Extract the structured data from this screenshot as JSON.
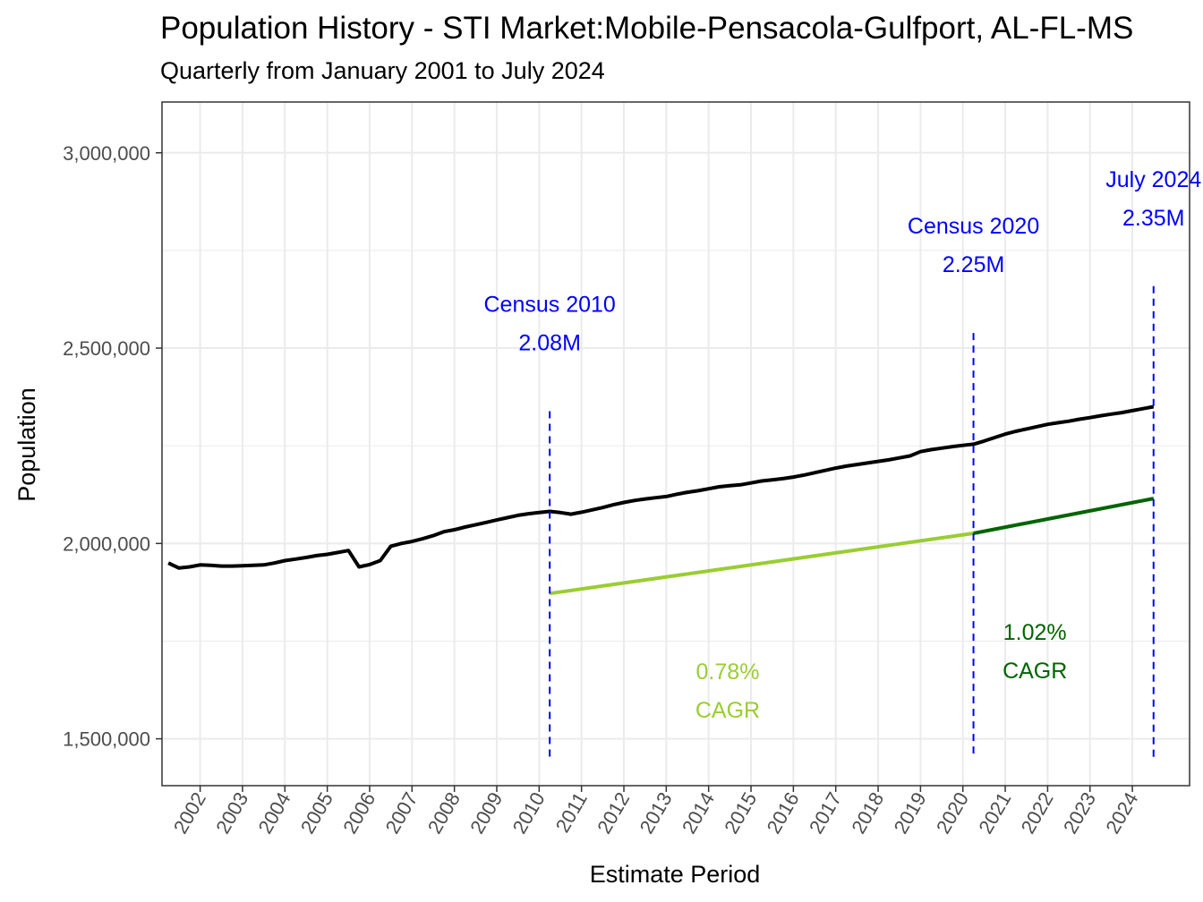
{
  "title": "Population History - STI Market:Mobile-Pensacola-Gulfport, AL-FL-MS",
  "subtitle": "Quarterly from January 2001 to July 2024",
  "colors": {
    "population": "#000000",
    "cagr_2010_2020": "#9ACD32",
    "cagr_2020_2024": "#006400",
    "census_marker": "#0000FF",
    "grid": "#EBEBEB",
    "panel_border": "#333333"
  },
  "chart_data": {
    "type": "line",
    "xlabel": "Estimate Period",
    "ylabel": "Population",
    "xlim": [
      2001.1,
      2025.35
    ],
    "ylim": [
      1380000,
      3130000
    ],
    "x_ticks": [
      2002,
      2003,
      2004,
      2005,
      2006,
      2007,
      2008,
      2009,
      2010,
      2011,
      2012,
      2013,
      2014,
      2015,
      2016,
      2017,
      2018,
      2019,
      2020,
      2021,
      2022,
      2023,
      2024
    ],
    "y_ticks": [
      {
        "value": 1500000,
        "label": "1,500,000"
      },
      {
        "value": 2000000,
        "label": "2,000,000"
      },
      {
        "value": 2500000,
        "label": "2,500,000"
      },
      {
        "value": 3000000,
        "label": "3,000,000"
      }
    ],
    "grid": true,
    "series": [
      {
        "key": "population",
        "x": [
          2001.25,
          2001.5,
          2001.75,
          2002.0,
          2002.25,
          2002.5,
          2002.75,
          2003.0,
          2003.25,
          2003.5,
          2003.75,
          2004.0,
          2004.25,
          2004.5,
          2004.75,
          2005.0,
          2005.25,
          2005.5,
          2005.75,
          2006.0,
          2006.25,
          2006.5,
          2006.75,
          2007.0,
          2007.25,
          2007.5,
          2007.75,
          2008.0,
          2008.25,
          2008.5,
          2008.75,
          2009.0,
          2009.25,
          2009.5,
          2009.75,
          2010.0,
          2010.25,
          2010.5,
          2010.75,
          2011.0,
          2011.25,
          2011.5,
          2011.75,
          2012.0,
          2012.25,
          2012.5,
          2012.75,
          2013.0,
          2013.25,
          2013.5,
          2013.75,
          2014.0,
          2014.25,
          2014.5,
          2014.75,
          2015.0,
          2015.25,
          2015.5,
          2015.75,
          2016.0,
          2016.25,
          2016.5,
          2016.75,
          2017.0,
          2017.25,
          2017.5,
          2017.75,
          2018.0,
          2018.25,
          2018.5,
          2018.75,
          2019.0,
          2019.25,
          2019.5,
          2019.75,
          2020.0,
          2020.25,
          2020.5,
          2020.75,
          2021.0,
          2021.25,
          2021.5,
          2021.75,
          2022.0,
          2022.25,
          2022.5,
          2022.75,
          2023.0,
          2023.25,
          2023.5,
          2023.75,
          2024.0,
          2024.25,
          2024.5
        ],
        "values": [
          1950000,
          1937000,
          1940000,
          1945000,
          1944000,
          1942000,
          1942000,
          1943000,
          1944000,
          1945000,
          1950000,
          1956000,
          1960000,
          1964000,
          1969000,
          1972000,
          1977000,
          1982000,
          1940000,
          1946000,
          1956000,
          1993000,
          2000000,
          2005000,
          2012000,
          2020000,
          2030000,
          2035000,
          2042000,
          2048000,
          2054000,
          2060000,
          2066000,
          2072000,
          2076000,
          2079000,
          2082000,
          2079000,
          2075000,
          2080000,
          2086000,
          2092000,
          2099000,
          2105000,
          2110000,
          2114000,
          2117000,
          2120000,
          2126000,
          2131000,
          2135000,
          2140000,
          2145000,
          2148000,
          2150000,
          2155000,
          2160000,
          2163000,
          2166000,
          2170000,
          2175000,
          2181000,
          2187000,
          2193000,
          2198000,
          2202000,
          2206000,
          2210000,
          2214000,
          2219000,
          2224000,
          2235000,
          2240000,
          2244000,
          2248000,
          2251000,
          2254000,
          2262000,
          2271000,
          2280000,
          2287000,
          2293000,
          2299000,
          2305000,
          2309000,
          2313000,
          2318000,
          2322000,
          2327000,
          2331000,
          2335000,
          2340000,
          2345000,
          2350000
        ]
      },
      {
        "key": "cagr_2010_2020",
        "x": [
          2010.25,
          2020.25
        ],
        "values": [
          1872000,
          2026000
        ]
      },
      {
        "key": "cagr_2020_2024",
        "x": [
          2020.25,
          2024.5
        ],
        "values": [
          2026000,
          2115000
        ]
      }
    ],
    "vlines": [
      2010.25,
      2020.25,
      2024.5
    ],
    "annotations": [
      {
        "line1": "Census 2010",
        "line2": "2.08M",
        "x": 2010.25,
        "y": 2570000,
        "color": "#0000FF"
      },
      {
        "line1": "Census 2020",
        "line2": "2.25M",
        "x": 2020.25,
        "y": 2770000,
        "color": "#0000FF"
      },
      {
        "line1": "July 2024",
        "line2": "2.35M",
        "x": 2024.5,
        "y": 2890000,
        "color": "#0000FF"
      },
      {
        "line1": "0.78%",
        "line2": "CAGR",
        "x": 2014.45,
        "y": 1630000,
        "color": "#9ACD32"
      },
      {
        "line1": "1.02%",
        "line2": "CAGR",
        "x": 2021.7,
        "y": 1730000,
        "color": "#006400"
      }
    ]
  }
}
